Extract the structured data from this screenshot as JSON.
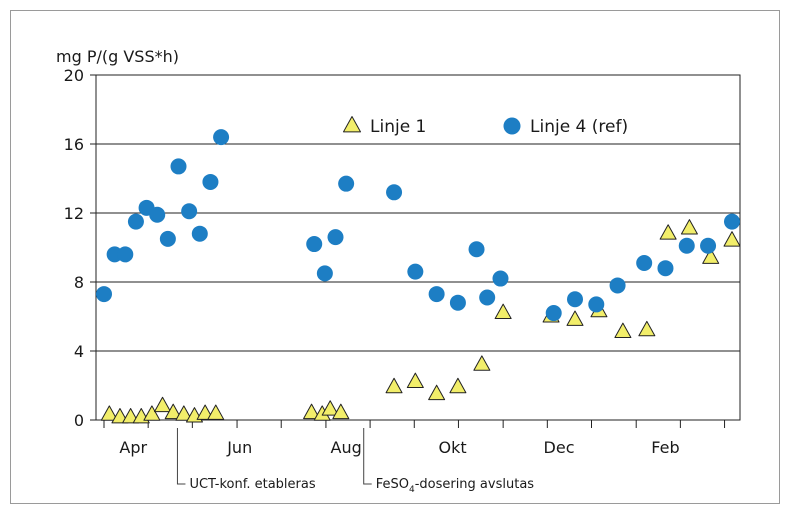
{
  "chart_data": {
    "type": "scatter",
    "title": "",
    "ylabel": "mg P/(g VSS*h)",
    "xlabel": "",
    "ylim": [
      0,
      20
    ],
    "yticks": [
      0,
      4,
      8,
      12,
      16,
      20
    ],
    "x_unit": "month index (0 = start of April, 12 = start of next April)",
    "xlim": [
      0,
      11.8
    ],
    "x_tick_labels": [
      {
        "label": "Apr",
        "x": 0.55
      },
      {
        "label": "Jun",
        "x": 2.55
      },
      {
        "label": "Aug",
        "x": 4.55
      },
      {
        "label": "Okt",
        "x": 6.55
      },
      {
        "label": "Dec",
        "x": 8.55
      },
      {
        "label": "Feb",
        "x": 10.55
      }
    ],
    "x_minor_ticks": [
      0,
      0.83,
      1.66,
      2.5,
      3.33,
      4.17,
      5.0,
      5.83,
      6.66,
      7.5,
      8.33,
      9.16,
      10.0,
      10.83,
      11.66
    ],
    "grid": "horizontal",
    "legend_position": "top-center",
    "series": [
      {
        "name": "Linje 1",
        "marker": "triangle",
        "color": "#f2ee6a",
        "points": [
          [
            0.1,
            0.3
          ],
          [
            0.3,
            0.15
          ],
          [
            0.5,
            0.15
          ],
          [
            0.7,
            0.15
          ],
          [
            0.9,
            0.3
          ],
          [
            1.1,
            0.8
          ],
          [
            1.3,
            0.4
          ],
          [
            1.5,
            0.3
          ],
          [
            1.7,
            0.2
          ],
          [
            1.9,
            0.35
          ],
          [
            2.1,
            0.35
          ],
          [
            3.9,
            0.4
          ],
          [
            4.1,
            0.3
          ],
          [
            4.25,
            0.6
          ],
          [
            4.45,
            0.4
          ],
          [
            5.45,
            1.9
          ],
          [
            5.85,
            2.2
          ],
          [
            6.25,
            1.5
          ],
          [
            6.65,
            1.9
          ],
          [
            7.1,
            3.2
          ],
          [
            7.5,
            6.2
          ],
          [
            8.4,
            6.0
          ],
          [
            8.85,
            5.8
          ],
          [
            9.3,
            6.3
          ],
          [
            9.75,
            5.1
          ],
          [
            10.2,
            5.2
          ],
          [
            10.6,
            10.8
          ],
          [
            11.0,
            11.1
          ],
          [
            11.4,
            9.4
          ],
          [
            11.8,
            10.4
          ]
        ]
      },
      {
        "name": "Linje 4 (ref)",
        "marker": "circle",
        "color": "#1d7ec4",
        "points": [
          [
            0.0,
            7.3
          ],
          [
            0.2,
            9.6
          ],
          [
            0.4,
            9.6
          ],
          [
            0.6,
            11.5
          ],
          [
            0.8,
            12.3
          ],
          [
            1.0,
            11.9
          ],
          [
            1.2,
            10.5
          ],
          [
            1.4,
            14.7
          ],
          [
            1.6,
            12.1
          ],
          [
            1.8,
            10.8
          ],
          [
            2.0,
            13.8
          ],
          [
            2.2,
            16.4
          ],
          [
            3.95,
            10.2
          ],
          [
            4.15,
            8.5
          ],
          [
            4.35,
            10.6
          ],
          [
            4.55,
            13.7
          ],
          [
            5.45,
            13.2
          ],
          [
            5.85,
            8.6
          ],
          [
            6.25,
            7.3
          ],
          [
            6.65,
            6.8
          ],
          [
            7.0,
            9.9
          ],
          [
            7.2,
            7.1
          ],
          [
            7.45,
            8.2
          ],
          [
            8.45,
            6.2
          ],
          [
            8.85,
            7.0
          ],
          [
            9.25,
            6.7
          ],
          [
            9.65,
            7.8
          ],
          [
            10.15,
            9.1
          ],
          [
            10.55,
            8.8
          ],
          [
            10.95,
            10.1
          ],
          [
            11.35,
            10.1
          ],
          [
            11.8,
            11.5
          ]
        ]
      }
    ],
    "annotations": [
      {
        "label": "UCT-konf. etableras",
        "x": 1.38
      },
      {
        "label": "FeSO",
        "subscript": "4",
        "label_rest": "-dosering avslutas",
        "x": 4.88
      }
    ]
  }
}
